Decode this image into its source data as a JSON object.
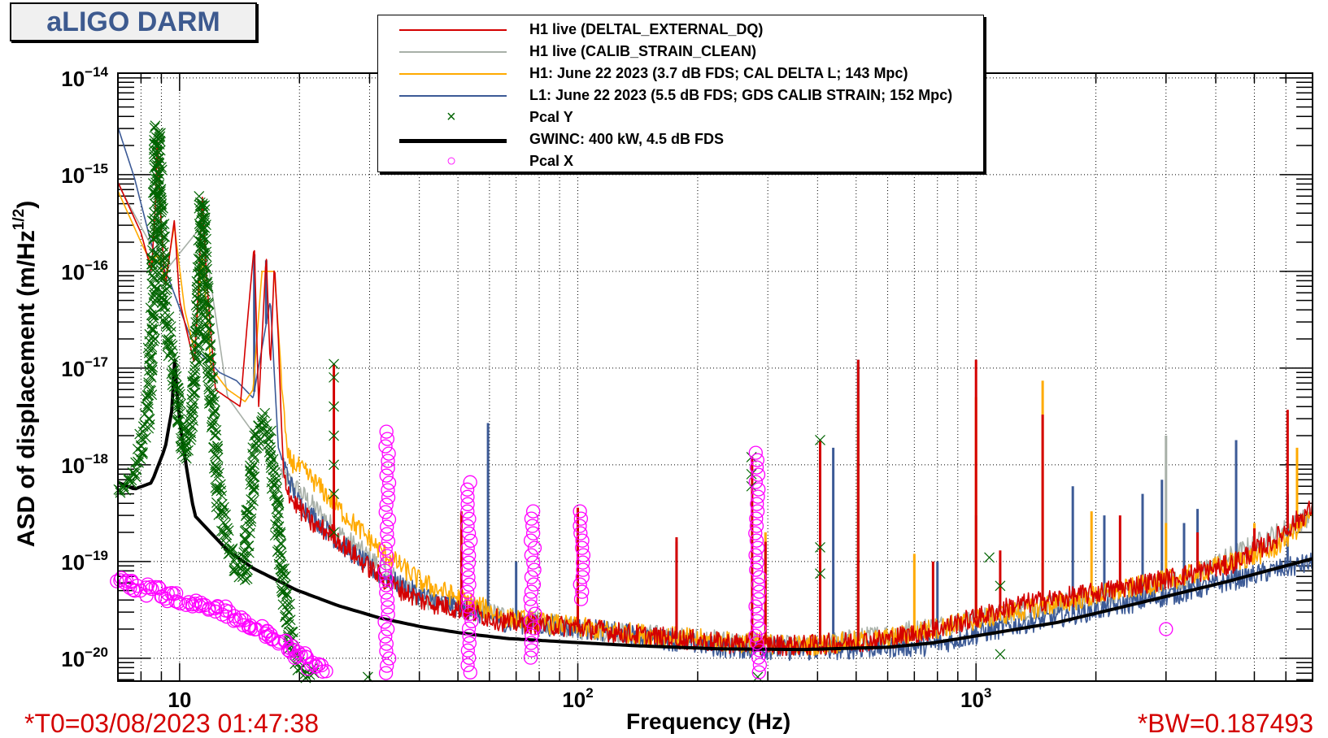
{
  "title": "aLIGO DARM",
  "footer": {
    "t0": "*T0=03/08/2023 01:47:38",
    "bw": "*BW=0.187493"
  },
  "chart_data": {
    "type": "line",
    "xlabel": "Frequency (Hz)",
    "ylabel": {
      "main": "ASD of displacement (m/Hz",
      "sup": "1/2",
      "end": ")"
    },
    "xscale": "log",
    "yscale": "log",
    "xlim": [
      7,
      7000
    ],
    "ylim": [
      5.8e-21,
      1.12e-14
    ],
    "grid": true,
    "legend_position": "top-center",
    "x_ticks": [
      {
        "f": 10,
        "base": "10",
        "exp": ""
      },
      {
        "f": 100,
        "base": "10",
        "exp": "2"
      },
      {
        "f": 1000,
        "base": "10",
        "exp": "3"
      }
    ],
    "y_ticks": [
      {
        "v": 1e-14,
        "base": "10",
        "exp": "−14"
      },
      {
        "v": 1e-15,
        "base": "10",
        "exp": "−15"
      },
      {
        "v": 1e-16,
        "base": "10",
        "exp": "−16"
      },
      {
        "v": 1e-17,
        "base": "10",
        "exp": "−17"
      },
      {
        "v": 1e-18,
        "base": "10",
        "exp": "−18"
      },
      {
        "v": 1e-19,
        "base": "10",
        "exp": "−19"
      },
      {
        "v": 1e-20,
        "base": "10",
        "exp": "−20"
      }
    ],
    "series": [
      {
        "name": "H1 live (CALIB_STRAIN_CLEAN)",
        "kind": "line",
        "color": "#a8b0a8",
        "points": [
          [
            7,
            8e-16
          ],
          [
            9.2,
            1e-16
          ],
          [
            11.4,
            3e-16
          ],
          [
            13.2,
            5e-18
          ],
          [
            18.2,
            8e-19
          ],
          [
            25,
            2e-19
          ],
          [
            40.8,
            4e-20
          ],
          [
            100,
            2e-20
          ],
          [
            369,
            1.3e-20
          ],
          [
            1000,
            2.5e-20
          ],
          [
            3330,
            6.5e-20
          ],
          [
            7000,
            3e-19
          ]
        ],
        "spikes": [
          [
            8.8,
            5e-16
          ],
          [
            506,
            5e-18
          ],
          [
            3000,
            2e-18
          ]
        ]
      },
      {
        "name": "L1: June 22 2023 (5.5 dB FDS; GDS CALIB STRAIN; 152 Mpc)",
        "kind": "line",
        "color": "#3c5a96",
        "points": [
          [
            7,
            3.1e-15
          ],
          [
            7.7,
            9.3e-16
          ],
          [
            8.5,
            1.9e-16
          ],
          [
            9.4,
            8.3e-17
          ],
          [
            10.3,
            3e-17
          ],
          [
            10.9,
            1.65e-17
          ],
          [
            12.6,
            9e-18
          ],
          [
            13.9,
            7.4e-18
          ],
          [
            15.3,
            4.9e-18
          ],
          [
            16.9,
            5e-17
          ],
          [
            17.7,
            1.5e-18
          ],
          [
            19.6,
            4.4e-19
          ],
          [
            25,
            1.6e-19
          ],
          [
            31.9,
            7.2e-20
          ],
          [
            40.8,
            4.4e-20
          ],
          [
            66.5,
            2.35e-20
          ],
          [
            108,
            2e-20
          ],
          [
            227,
            1.3e-20
          ],
          [
            369,
            1.2e-20
          ],
          [
            770,
            1.35e-20
          ],
          [
            1254,
            2.2e-20
          ],
          [
            2044,
            3.2e-20
          ],
          [
            3330,
            4.8e-20
          ],
          [
            4270,
            6.2e-20
          ],
          [
            5530,
            8e-20
          ],
          [
            7000,
            9.7e-20
          ]
        ],
        "spikes": [
          [
            15.4,
            1.5e-16
          ],
          [
            16.5,
            1.3e-16
          ],
          [
            59.5,
            2.7e-18
          ],
          [
            70,
            1e-19
          ],
          [
            177,
            1.6e-19
          ],
          [
            438,
            1.5e-18
          ],
          [
            506,
            1.22e-17
          ],
          [
            800,
            1e-19
          ],
          [
            1000,
            3e-19
          ],
          [
            1750,
            6e-19
          ],
          [
            2100,
            3e-19
          ],
          [
            2620,
            5e-19
          ],
          [
            2930,
            7e-19
          ],
          [
            3330,
            2.5e-19
          ],
          [
            3600,
            3.5e-19
          ],
          [
            4500,
            1.8e-18
          ],
          [
            6060,
            5e-19
          ]
        ]
      },
      {
        "name": "H1: June 22 2023 (3.7 dB FDS; CAL DELTA L; 143 Mpc)",
        "kind": "line",
        "color": "#ffaa00",
        "points": [
          [
            7,
            6.8e-16
          ],
          [
            8,
            2e-16
          ],
          [
            8.5,
            1.2e-16
          ],
          [
            8.8,
            1.5e-16
          ],
          [
            9.2,
            8e-17
          ],
          [
            9.7,
            3e-16
          ],
          [
            10.3,
            4e-17
          ],
          [
            10.9,
            1.5e-17
          ],
          [
            11.4,
            1.5e-16
          ],
          [
            12,
            1e-17
          ],
          [
            13.2,
            6e-18
          ],
          [
            14.6,
            4.5e-18
          ],
          [
            15.3,
            6e-18
          ],
          [
            16.1,
            1e-16
          ],
          [
            17.3,
            1e-16
          ],
          [
            17.7,
            2.5e-17
          ],
          [
            18.6,
            1.2e-18
          ],
          [
            21.6,
            7e-19
          ],
          [
            25,
            3.6e-19
          ],
          [
            31.9,
            1.3e-19
          ],
          [
            40.8,
            6e-20
          ],
          [
            66.5,
            2.6e-20
          ],
          [
            108,
            2e-20
          ],
          [
            227,
            1.5e-20
          ],
          [
            369,
            1.35e-20
          ],
          [
            600,
            1.6e-20
          ],
          [
            1000,
            2.5e-20
          ],
          [
            2044,
            4.5e-20
          ],
          [
            3330,
            7e-20
          ],
          [
            5530,
            1.3e-19
          ],
          [
            7000,
            3e-19
          ]
        ],
        "spikes": [
          [
            296,
            2e-19
          ],
          [
            506,
            5e-18
          ],
          [
            700,
            1.2e-19
          ],
          [
            1000,
            5e-18
          ],
          [
            1470,
            7.4e-18
          ],
          [
            1950,
            3.3e-19
          ],
          [
            3000,
            2.5e-19
          ],
          [
            5000,
            2.5e-19
          ],
          [
            6400,
            1.5e-18
          ]
        ]
      },
      {
        "name": "H1 live (DELTAL_EXTERNAL_DQ)",
        "kind": "line",
        "color": "#d40000",
        "points": [
          [
            7,
            8.4e-16
          ],
          [
            8,
            2.5e-16
          ],
          [
            8.5,
            1e-16
          ],
          [
            8.7,
            5e-16
          ],
          [
            8.8,
            3.1e-15
          ],
          [
            8.9,
            6e-16
          ],
          [
            9.2,
            6.8e-17
          ],
          [
            9.7,
            3.4e-16
          ],
          [
            10,
            5e-17
          ],
          [
            10.9,
            1.1e-17
          ],
          [
            11.2,
            1e-16
          ],
          [
            11.4,
            6.2e-16
          ],
          [
            11.7,
            8e-17
          ],
          [
            12.3,
            6e-18
          ],
          [
            13.2,
            4.9e-18
          ],
          [
            14.2,
            4e-18
          ],
          [
            14.8,
            3e-17
          ],
          [
            15.4,
            1.9e-16
          ],
          [
            15.8,
            4e-18
          ],
          [
            16.5,
            1.5e-16
          ],
          [
            16.9,
            1e-17
          ],
          [
            17.3,
            1.23e-16
          ],
          [
            17.7,
            2e-17
          ],
          [
            18.2,
            8.1e-19
          ],
          [
            19.1,
            4.4e-19
          ],
          [
            21.6,
            2.4e-19
          ],
          [
            24,
            1.95e-19
          ],
          [
            28.9,
            9.7e-20
          ],
          [
            33.6,
            5.9e-20
          ],
          [
            40.8,
            3.9e-20
          ],
          [
            52,
            3.1e-20
          ],
          [
            66.5,
            2.35e-20
          ],
          [
            100,
            2.1e-20
          ],
          [
            138,
            1.75e-20
          ],
          [
            227,
            1.45e-20
          ],
          [
            369,
            1.35e-20
          ],
          [
            600,
            1.58e-20
          ],
          [
            770,
            1.95e-20
          ],
          [
            1000,
            2.6e-20
          ],
          [
            1254,
            3.55e-20
          ],
          [
            2044,
            4.8e-20
          ],
          [
            3330,
            7.2e-20
          ],
          [
            4270,
            9e-20
          ],
          [
            5530,
            1.6e-19
          ],
          [
            7000,
            3.6e-19
          ]
        ],
        "spikes": [
          [
            24.4,
            1.1e-17
          ],
          [
            51,
            3.3e-19
          ],
          [
            100,
            3.6e-19
          ],
          [
            177,
            1.78e-19
          ],
          [
            274,
            1.2e-18
          ],
          [
            296,
            1.6e-19
          ],
          [
            406,
            1.8e-18
          ],
          [
            506,
            1.22e-17
          ],
          [
            780,
            1e-19
          ],
          [
            1000,
            1.22e-17
          ],
          [
            1150,
            1.3e-19
          ],
          [
            1470,
            3.3e-18
          ],
          [
            2300,
            3e-19
          ],
          [
            3600,
            2e-19
          ],
          [
            5000,
            2.2e-19
          ],
          [
            6060,
            3.7e-18
          ]
        ]
      },
      {
        "name": "GWINC: 400 kW, 4.5 dB FDS",
        "kind": "line",
        "color": "#000000",
        "points": [
          [
            7,
            6.6e-19
          ],
          [
            7.7,
            5.6e-19
          ],
          [
            8.5,
            6.5e-19
          ],
          [
            9.2,
            1.5e-18
          ],
          [
            9.6,
            4e-18
          ],
          [
            9.75,
            1.6e-17
          ],
          [
            9.9,
            4e-18
          ],
          [
            10.3,
            1.2e-18
          ],
          [
            10.9,
            3e-19
          ],
          [
            13.2,
            1.3e-19
          ],
          [
            15.3,
            8.5e-20
          ],
          [
            19.6,
            5.1e-20
          ],
          [
            25,
            3.5e-20
          ],
          [
            31.9,
            2.6e-20
          ],
          [
            40.8,
            2.1e-20
          ],
          [
            52,
            1.8e-20
          ],
          [
            66.5,
            1.6e-20
          ],
          [
            100,
            1.45e-20
          ],
          [
            138,
            1.35e-20
          ],
          [
            227,
            1.25e-20
          ],
          [
            369,
            1.23e-20
          ],
          [
            600,
            1.3e-20
          ],
          [
            770,
            1.43e-20
          ],
          [
            1000,
            1.7e-20
          ],
          [
            1606,
            2.35e-20
          ],
          [
            2620,
            3.8e-20
          ],
          [
            4270,
            6.2e-20
          ],
          [
            7000,
            1.07e-19
          ]
        ],
        "spikes": []
      },
      {
        "name": "Pcal Y",
        "kind": "marker",
        "marker": "x",
        "color": "#006400",
        "trace": [
          [
            7,
            4.9e-19
          ],
          [
            7.7,
            8e-19
          ],
          [
            8.3,
            3e-18
          ],
          [
            8.6,
            4e-17
          ],
          [
            8.8,
            3.1e-15
          ],
          [
            9,
            3e-16
          ],
          [
            9.2,
            4e-17
          ],
          [
            9.6,
            1e-17
          ],
          [
            10.3,
            1.2e-18
          ],
          [
            10.9,
            5e-18
          ],
          [
            11.2,
            4e-17
          ],
          [
            11.4,
            5.6e-16
          ],
          [
            11.7,
            3e-17
          ],
          [
            12,
            5e-18
          ],
          [
            12.6,
            3.6e-19
          ],
          [
            13.9,
            8e-20
          ],
          [
            14.6,
            7e-20
          ],
          [
            15.3,
            1.2e-18
          ],
          [
            16.1,
            3e-18
          ],
          [
            16.9,
            2e-18
          ],
          [
            17.7,
            2e-19
          ],
          [
            19.1,
            1.2e-20
          ],
          [
            20.5,
            7e-21
          ],
          [
            22,
            7e-21
          ]
        ],
        "points": [
          [
            24.4,
            1.1e-17
          ],
          [
            24.4,
            8e-18
          ],
          [
            24.4,
            4e-18
          ],
          [
            24.4,
            2e-18
          ],
          [
            24.4,
            1e-18
          ],
          [
            24.4,
            5e-19
          ],
          [
            24.4,
            2e-19
          ],
          [
            29.7,
            6.4e-21
          ],
          [
            273,
            1.2e-18
          ],
          [
            273,
            8e-19
          ],
          [
            273,
            6e-19
          ],
          [
            283,
            6.4e-21
          ],
          [
            406,
            1.8e-18
          ],
          [
            406,
            1.4e-19
          ],
          [
            406,
            7.5e-20
          ],
          [
            1080,
            1.1e-19
          ],
          [
            1150,
            5.6e-20
          ],
          [
            1150,
            1.1e-20
          ]
        ]
      },
      {
        "name": "Pcal X",
        "kind": "marker",
        "marker": "circle",
        "color": "#ff00ff",
        "trace": [
          [
            7,
            6.5e-20
          ],
          [
            7.5,
            6e-20
          ],
          [
            8.3,
            5e-20
          ],
          [
            9.4,
            4.4e-20
          ],
          [
            10.9,
            3.8e-20
          ],
          [
            12.6,
            3.2e-20
          ],
          [
            14.6,
            2.4e-20
          ],
          [
            16.9,
            1.7e-20
          ],
          [
            19.6,
            1.15e-20
          ],
          [
            22,
            8e-21
          ],
          [
            23.8,
            7.1e-21
          ]
        ],
        "columns": [
          {
            "f": 33.2,
            "min": 6.4e-21,
            "max": 2.2e-18
          },
          {
            "f": 53.5,
            "min": 6.4e-21,
            "max": 6.6e-19
          },
          {
            "f": 77,
            "min": 9.6e-21,
            "max": 3.3e-19
          },
          {
            "f": 102,
            "min": 3.6e-20,
            "max": 3.3e-19
          },
          {
            "f": 283,
            "min": 6.4e-21,
            "max": 1.33e-18
          }
        ],
        "points": [
          [
            3000,
            2e-20
          ]
        ]
      }
    ],
    "legend": [
      {
        "label": "H1 live (DELTAL_EXTERNAL_DQ)",
        "color": "#d40000",
        "type": "line",
        "width": 2
      },
      {
        "label": "H1 live (CALIB_STRAIN_CLEAN)",
        "color": "#a8b0a8",
        "type": "line",
        "width": 2
      },
      {
        "label": "H1: June 22 2023 (3.7 dB FDS; CAL DELTA L; 143 Mpc)",
        "color": "#ffaa00",
        "type": "line",
        "width": 2
      },
      {
        "label": "L1: June 22 2023 (5.5 dB FDS; GDS CALIB STRAIN; 152 Mpc)",
        "color": "#3c5a96",
        "type": "line",
        "width": 2
      },
      {
        "label": "Pcal Y",
        "color": "#006400",
        "type": "x",
        "glyph": "×"
      },
      {
        "label": "GWINC: 400 kW, 4.5 dB FDS",
        "color": "#000000",
        "type": "line",
        "width": 5
      },
      {
        "label": "Pcal X",
        "color": "#ff00ff",
        "type": "circle",
        "glyph": "○"
      }
    ]
  }
}
